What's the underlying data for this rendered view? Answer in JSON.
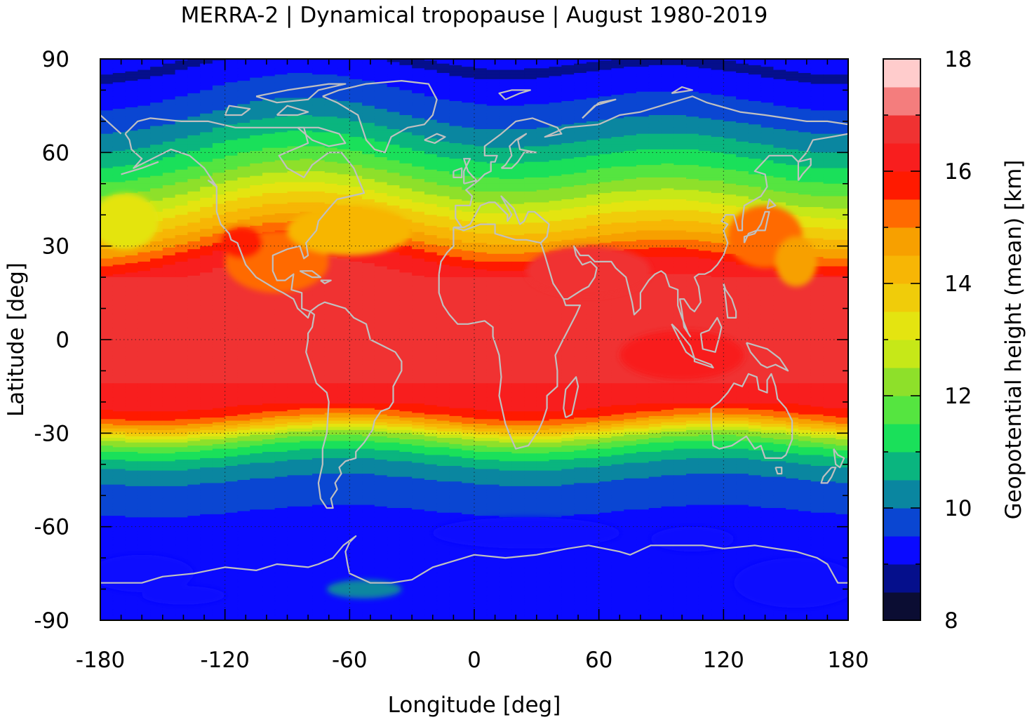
{
  "chart_data": {
    "type": "heatmap",
    "title": "MERRA-2 | Dynamical tropopause | August 1980-2019",
    "xlabel": "Longitude [deg]",
    "ylabel": "Latitude [deg]",
    "xlim": [
      -180,
      180
    ],
    "ylim": [
      -90,
      90
    ],
    "x_ticks": [
      -180,
      -120,
      -60,
      0,
      60,
      120,
      180
    ],
    "y_ticks": [
      90,
      60,
      30,
      0,
      -30,
      -60,
      -90
    ],
    "grid": true,
    "overlay": "coastlines",
    "colorbar": {
      "label": "Geopotential height (mean) [km]",
      "range": [
        8,
        18
      ],
      "ticks": [
        8,
        10,
        12,
        14,
        16,
        18
      ],
      "levels": [
        8,
        8.5,
        9,
        9.5,
        10,
        10.5,
        11,
        11.5,
        12,
        12.5,
        13,
        13.5,
        14,
        14.5,
        15,
        15.5,
        16,
        16.5,
        17,
        17.5,
        18
      ],
      "colors": [
        "#0b0d33",
        "#050f8c",
        "#0a0aff",
        "#0a46d2",
        "#0a86a0",
        "#0ab57f",
        "#1ae05a",
        "#55e540",
        "#8ee02a",
        "#c6e818",
        "#e4e410",
        "#f0cc0a",
        "#f7b605",
        "#f7a000",
        "#ff6a00",
        "#ff1a00",
        "#f81e1e",
        "#f03232",
        "#f47d7d",
        "#ffcccc"
      ]
    },
    "zonal_profile": {
      "lat": [
        90,
        82,
        75,
        68,
        62,
        56,
        50,
        45,
        40,
        35,
        30,
        25,
        20,
        10,
        0,
        -10,
        -20,
        -25,
        -28,
        -31,
        -35,
        -40,
        -45,
        -50,
        -55,
        -60,
        -70,
        -80,
        -90
      ],
      "height_km": [
        8.8,
        9.3,
        9.7,
        10.2,
        10.8,
        11.4,
        12.1,
        12.8,
        13.6,
        14.3,
        15.2,
        16.1,
        16.5,
        16.7,
        16.7,
        16.7,
        16.2,
        15.3,
        14.0,
        12.5,
        11.3,
        10.5,
        10.0,
        9.7,
        9.5,
        9.3,
        9.2,
        9.1,
        9.0
      ]
    }
  }
}
